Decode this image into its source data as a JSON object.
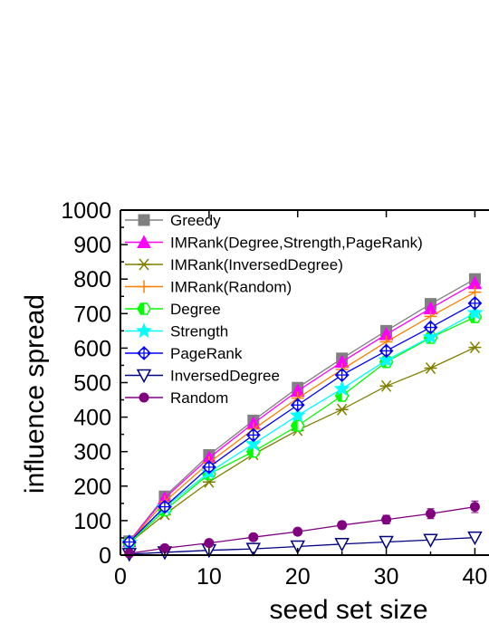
{
  "chart_data": {
    "type": "line",
    "xlabel": "seed set size",
    "ylabel": "influence spread",
    "xlim": [
      0,
      42
    ],
    "ylim": [
      0,
      1000
    ],
    "x_ticks": [
      0,
      10,
      20,
      30,
      40
    ],
    "x_tick_labels": [
      "0",
      "10",
      "20",
      "30",
      "40"
    ],
    "y_ticks": [
      0,
      100,
      200,
      300,
      400,
      500,
      600,
      700,
      800,
      900,
      1000
    ],
    "y_tick_labels": [
      "0",
      "100",
      "200",
      "300",
      "400",
      "500",
      "600",
      "700",
      "800",
      "900",
      "1000"
    ],
    "grid": false,
    "legend_position": "top-left",
    "x": [
      1,
      5,
      10,
      15,
      20,
      25,
      30,
      35,
      40
    ],
    "series": [
      {
        "name": "Greedy",
        "color": "#808080",
        "marker": "square",
        "values": [
          40,
          170,
          290,
          390,
          485,
          570,
          650,
          728,
          800
        ]
      },
      {
        "name": "IMRank(Degree,Strength,PageRank)",
        "color": "#ff00ff",
        "marker": "triangle-up",
        "values": [
          40,
          165,
          282,
          382,
          476,
          560,
          640,
          715,
          788
        ]
      },
      {
        "name": "IMRank(InversedDegree)",
        "color": "#808000",
        "marker": "asterisk",
        "values": [
          35,
          118,
          212,
          292,
          362,
          422,
          490,
          542,
          602
        ]
      },
      {
        "name": "IMRank(Random)",
        "color": "#ff8000",
        "marker": "plus",
        "values": [
          38,
          155,
          268,
          365,
          455,
          538,
          618,
          692,
          762
        ]
      },
      {
        "name": "Degree",
        "color": "#00ff00",
        "marker": "half-hexagon",
        "values": [
          35,
          130,
          235,
          300,
          375,
          462,
          560,
          630,
          690
        ]
      },
      {
        "name": "Strength",
        "color": "#00ffff",
        "marker": "star",
        "values": [
          37,
          138,
          240,
          322,
          405,
          482,
          565,
          632,
          702
        ]
      },
      {
        "name": "PageRank",
        "color": "#0000ff",
        "marker": "circle-plus",
        "values": [
          38,
          140,
          255,
          348,
          435,
          522,
          592,
          660,
          730
        ]
      },
      {
        "name": "InversedDegree",
        "color": "#000080",
        "marker": "triangle-down",
        "values": [
          3,
          8,
          14,
          18,
          25,
          32,
          38,
          44,
          51
        ]
      },
      {
        "name": "Random",
        "color": "#800080",
        "marker": "filled-circle",
        "values": [
          5,
          20,
          35,
          52,
          68,
          87,
          103,
          120,
          140
        ]
      }
    ]
  }
}
